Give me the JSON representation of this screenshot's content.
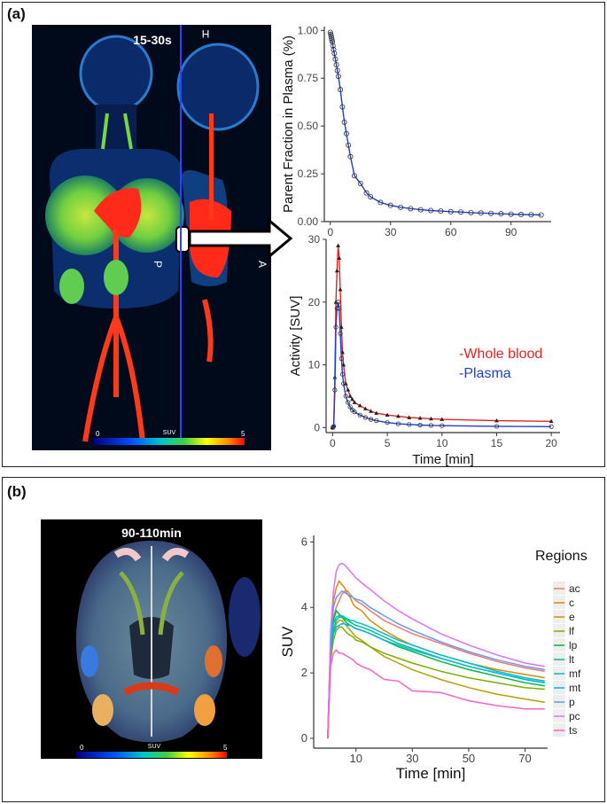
{
  "panel_a": {
    "label": "(a)",
    "pet_time_label": "15-30s",
    "orientation": {
      "head": "H",
      "posterior": "P",
      "anterior": "A"
    },
    "colorbar": {
      "min": "0",
      "label": "SUV",
      "max": "5"
    }
  },
  "panel_b": {
    "label": "(b)",
    "pet_time_label": "90-110min",
    "colorbar": {
      "min": "0",
      "label": "SUV",
      "max": "5"
    }
  },
  "colors": {
    "blood": "#e8221d",
    "plasma": "#1f3fd0",
    "axis": "#333333"
  },
  "chart_data": [
    {
      "id": "parent-fraction",
      "type": "line",
      "title": "",
      "xlabel": "",
      "ylabel": "Parent Fraction in Plasma (%)",
      "xlim": [
        -3,
        110
      ],
      "ylim": [
        0,
        1.02
      ],
      "xticks": [
        "0",
        "30",
        "60",
        "90"
      ],
      "xtick_values": [
        0,
        30,
        60,
        90
      ],
      "yticks": [
        "0.00",
        "0.25",
        "0.50",
        "0.75",
        "1.00"
      ],
      "ytick_values": [
        0,
        0.25,
        0.5,
        0.75,
        1.0
      ],
      "series": [
        {
          "x": [
            0,
            0.2,
            0.4,
            0.6,
            0.8,
            1.0,
            1.3,
            1.6,
            2.0,
            2.5,
            3,
            3.5,
            4,
            5,
            6,
            7,
            8,
            9,
            10,
            12,
            15,
            18,
            20,
            25,
            30,
            35,
            40,
            45,
            50,
            55,
            60,
            65,
            70,
            75,
            80,
            85,
            90,
            95,
            100,
            105
          ],
          "y": [
            0.99,
            0.98,
            0.97,
            0.96,
            0.95,
            0.94,
            0.92,
            0.9,
            0.88,
            0.85,
            0.82,
            0.79,
            0.76,
            0.69,
            0.6,
            0.52,
            0.46,
            0.4,
            0.34,
            0.24,
            0.2,
            0.15,
            0.13,
            0.1,
            0.085,
            0.075,
            0.068,
            0.062,
            0.058,
            0.055,
            0.052,
            0.05,
            0.047,
            0.045,
            0.043,
            0.041,
            0.039,
            0.037,
            0.036,
            0.035
          ]
        }
      ]
    },
    {
      "id": "activity",
      "type": "line",
      "title": "",
      "xlabel": "Time [min]",
      "ylabel": "Activity [SUV]",
      "xlim": [
        -0.6,
        20.8
      ],
      "ylim": [
        -0.8,
        30
      ],
      "xticks": [
        "0",
        "5",
        "10",
        "15",
        "20"
      ],
      "xtick_values": [
        0,
        5,
        10,
        15,
        20
      ],
      "yticks": [
        "0",
        "10",
        "20",
        "30"
      ],
      "ytick_values": [
        0,
        10,
        20,
        30
      ],
      "legend": {
        "position": "right",
        "entries": [
          "-Whole blood",
          "-Plasma"
        ]
      },
      "series": [
        {
          "name": "-Whole blood",
          "x": [
            0,
            0.1,
            0.2,
            0.3,
            0.4,
            0.5,
            0.6,
            0.7,
            0.8,
            0.9,
            1.0,
            1.2,
            1.4,
            1.6,
            1.8,
            2,
            2.5,
            3,
            3.5,
            4,
            5,
            6,
            7,
            8,
            9,
            10,
            15,
            20
          ],
          "y": [
            0,
            0.3,
            8,
            20,
            25,
            29,
            27,
            22,
            16,
            12,
            10,
            7,
            6,
            5,
            4.5,
            4,
            3.5,
            3,
            2.6,
            2.3,
            2,
            1.8,
            1.6,
            1.5,
            1.4,
            1.3,
            1.1,
            1.0
          ]
        },
        {
          "name": "-Plasma",
          "x": [
            0,
            0.1,
            0.2,
            0.3,
            0.4,
            0.5,
            0.6,
            0.7,
            0.8,
            0.9,
            1.0,
            1.2,
            1.4,
            1.6,
            1.8,
            2,
            2.5,
            3,
            3.5,
            4,
            5,
            6,
            7,
            8,
            9,
            10,
            15,
            20
          ],
          "y": [
            0,
            0.2,
            6,
            16,
            19,
            20,
            19,
            15,
            11,
            8.5,
            7,
            5,
            4,
            3.3,
            2.8,
            2.5,
            2,
            1.6,
            1.3,
            1.1,
            0.8,
            0.6,
            0.5,
            0.4,
            0.35,
            0.3,
            0.2,
            0.15
          ]
        }
      ]
    },
    {
      "id": "regional-suv",
      "type": "line",
      "title": "",
      "xlabel": "Time [min]",
      "ylabel": "SUV",
      "xlim": [
        -5,
        78
      ],
      "ylim": [
        -0.3,
        6.2
      ],
      "xticks": [
        "10",
        "30",
        "50",
        "70"
      ],
      "xtick_values": [
        10,
        30,
        50,
        70
      ],
      "yticks": [
        "0",
        "2",
        "4",
        "6"
      ],
      "ytick_values": [
        0,
        2,
        4,
        6
      ],
      "legend": {
        "title": "Regions",
        "position": "right"
      },
      "x": [
        0,
        1,
        2,
        3,
        4,
        5,
        6,
        7,
        8,
        9,
        10,
        12,
        15,
        20,
        25,
        30,
        40,
        50,
        60,
        70,
        77
      ],
      "series": [
        {
          "name": "ac",
          "color": "#f8766d",
          "y": [
            0,
            2.8,
            3.7,
            4.0,
            4.2,
            4.4,
            4.5,
            4.5,
            4.4,
            4.3,
            4.2,
            4.1,
            3.9,
            3.6,
            3.4,
            3.2,
            2.9,
            2.6,
            2.35,
            2.15,
            2.05
          ]
        },
        {
          "name": "c",
          "color": "#e58700",
          "y": [
            0,
            3.0,
            4.2,
            4.6,
            4.8,
            4.7,
            4.6,
            4.4,
            4.3,
            4.1,
            4.0,
            3.9,
            3.6,
            3.3,
            3.05,
            2.85,
            2.55,
            2.3,
            2.1,
            1.95,
            1.85
          ]
        },
        {
          "name": "e",
          "color": "#b79f00",
          "y": [
            0,
            2.6,
            3.2,
            3.5,
            3.6,
            3.6,
            3.5,
            3.4,
            3.3,
            3.2,
            3.1,
            3.0,
            2.8,
            2.5,
            2.3,
            2.1,
            1.8,
            1.55,
            1.35,
            1.2,
            1.1
          ]
        },
        {
          "name": "lf",
          "color": "#7cae00",
          "y": [
            0,
            2.4,
            3.0,
            3.3,
            3.4,
            3.4,
            3.3,
            3.2,
            3.15,
            3.1,
            3.0,
            2.95,
            2.8,
            2.6,
            2.45,
            2.3,
            2.05,
            1.85,
            1.7,
            1.55,
            1.5
          ]
        },
        {
          "name": "lp",
          "color": "#00ba38",
          "y": [
            0,
            2.8,
            3.6,
            3.9,
            3.8,
            3.7,
            3.6,
            3.5,
            3.45,
            3.4,
            3.35,
            3.3,
            3.2,
            3.0,
            2.8,
            2.65,
            2.35,
            2.1,
            1.9,
            1.7,
            1.6
          ]
        },
        {
          "name": "lt",
          "color": "#00c08b",
          "y": [
            0,
            2.7,
            3.3,
            3.6,
            3.7,
            3.7,
            3.65,
            3.6,
            3.55,
            3.5,
            3.45,
            3.4,
            3.3,
            3.1,
            2.9,
            2.75,
            2.45,
            2.2,
            2.0,
            1.8,
            1.7
          ]
        },
        {
          "name": "mf",
          "color": "#00bfc4",
          "y": [
            0,
            2.9,
            3.5,
            3.7,
            3.75,
            3.75,
            3.7,
            3.65,
            3.6,
            3.6,
            3.55,
            3.5,
            3.4,
            3.2,
            3.0,
            2.85,
            2.55,
            2.3,
            2.05,
            1.85,
            1.75
          ]
        },
        {
          "name": "mt",
          "color": "#00b4f0",
          "y": [
            0,
            2.7,
            3.2,
            3.4,
            3.45,
            3.5,
            3.5,
            3.45,
            3.45,
            3.4,
            3.35,
            3.3,
            3.2,
            3.0,
            2.85,
            2.7,
            2.45,
            2.2,
            2.0,
            1.8,
            1.7
          ]
        },
        {
          "name": "p",
          "color": "#619cff",
          "y": [
            0,
            3.1,
            4.0,
            4.3,
            4.4,
            4.5,
            4.45,
            4.4,
            4.35,
            4.3,
            4.25,
            4.2,
            4.0,
            3.75,
            3.5,
            3.3,
            2.95,
            2.65,
            2.4,
            2.2,
            2.1
          ]
        },
        {
          "name": "pc",
          "color": "#db72fb",
          "y": [
            0,
            3.3,
            4.5,
            5.1,
            5.3,
            5.35,
            5.3,
            5.2,
            5.1,
            5.0,
            4.9,
            4.75,
            4.55,
            4.2,
            3.9,
            3.65,
            3.2,
            2.85,
            2.55,
            2.3,
            2.2
          ]
        },
        {
          "name": "ts",
          "color": "#ff61c3",
          "y": [
            0,
            2.2,
            2.6,
            2.7,
            2.6,
            2.6,
            2.55,
            2.5,
            2.45,
            2.4,
            2.3,
            2.2,
            2.1,
            1.8,
            1.75,
            1.45,
            1.4,
            1.15,
            1.0,
            0.9,
            0.9
          ]
        }
      ]
    }
  ]
}
